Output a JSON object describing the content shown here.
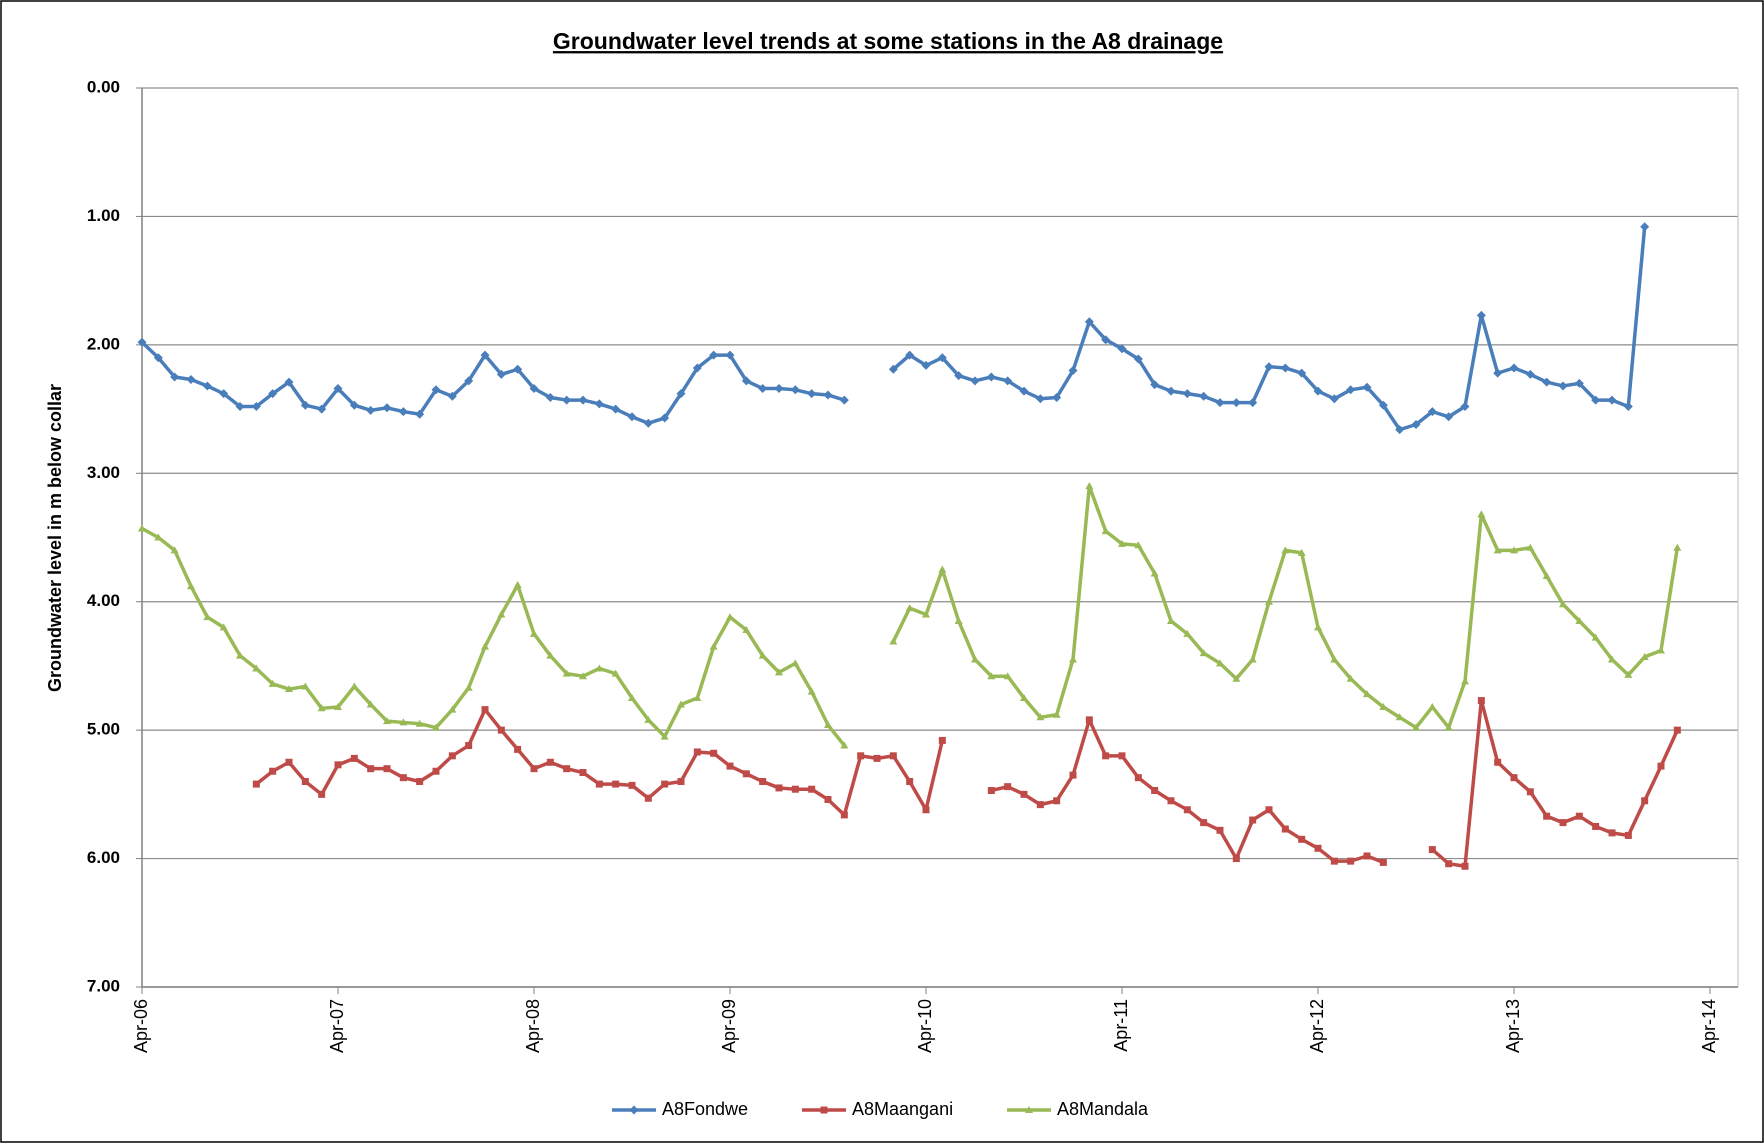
{
  "chart_data": {
    "type": "line",
    "title": "Groundwater level trends at some stations in the A8 drainage",
    "y_label": "Groundwater level in m below collar",
    "x": [
      "Apr-06",
      "May-06",
      "Jun-06",
      "Jul-06",
      "Aug-06",
      "Sep-06",
      "Oct-06",
      "Nov-06",
      "Dec-06",
      "Jan-07",
      "Feb-07",
      "Mar-07",
      "Apr-07",
      "May-07",
      "Jun-07",
      "Jul-07",
      "Aug-07",
      "Sep-07",
      "Oct-07",
      "Nov-07",
      "Dec-07",
      "Jan-08",
      "Feb-08",
      "Mar-08",
      "Apr-08",
      "May-08",
      "Jun-08",
      "Jul-08",
      "Aug-08",
      "Sep-08",
      "Oct-08",
      "Nov-08",
      "Dec-08",
      "Jan-09",
      "Feb-09",
      "Mar-09",
      "Apr-09",
      "May-09",
      "Jun-09",
      "Jul-09",
      "Aug-09",
      "Sep-09",
      "Oct-09",
      "Nov-09",
      "Dec-09",
      "Jan-10",
      "Feb-10",
      "Mar-10",
      "Apr-10",
      "May-10",
      "Jun-10",
      "Jul-10",
      "Aug-10",
      "Sep-10",
      "Oct-10",
      "Nov-10",
      "Dec-10",
      "Jan-11",
      "Feb-11",
      "Mar-11",
      "Apr-11",
      "May-11",
      "Jun-11",
      "Jul-11",
      "Aug-11",
      "Sep-11",
      "Oct-11",
      "Nov-11",
      "Dec-11",
      "Jan-12",
      "Feb-12",
      "Mar-12",
      "Apr-12",
      "May-12",
      "Jun-12",
      "Jul-12",
      "Aug-12",
      "Sep-12",
      "Oct-12",
      "Nov-12",
      "Dec-12",
      "Jan-13",
      "Feb-13",
      "Mar-13",
      "Apr-13",
      "May-13",
      "Jun-13",
      "Jul-13",
      "Aug-13",
      "Sep-13",
      "Oct-13",
      "Nov-13",
      "Dec-13",
      "Jan-14",
      "Feb-14"
    ],
    "series": [
      {
        "name": "A8Fondwe",
        "color": "#4a7ebb",
        "marker": "diamond",
        "values": [
          1.98,
          2.1,
          2.25,
          2.27,
          2.32,
          2.38,
          2.48,
          2.48,
          2.38,
          2.29,
          2.47,
          2.5,
          2.34,
          2.47,
          2.51,
          2.49,
          2.52,
          2.54,
          2.35,
          2.4,
          2.28,
          2.08,
          2.23,
          2.19,
          2.34,
          2.41,
          2.43,
          2.43,
          2.46,
          2.5,
          2.56,
          2.61,
          2.57,
          2.38,
          2.18,
          2.08,
          2.08,
          2.28,
          2.34,
          2.34,
          2.35,
          2.38,
          2.39,
          2.43,
          null,
          null,
          2.19,
          2.08,
          2.16,
          2.1,
          2.24,
          2.28,
          2.25,
          2.28,
          2.36,
          2.42,
          2.41,
          2.2,
          1.82,
          1.96,
          2.03,
          2.11,
          2.31,
          2.36,
          2.38,
          2.4,
          2.45,
          2.45,
          2.45,
          2.17,
          2.18,
          2.22,
          2.36,
          2.42,
          2.35,
          2.33,
          2.47,
          2.66,
          2.62,
          2.52,
          2.56,
          2.48,
          1.77,
          2.22,
          2.18,
          2.23,
          2.29,
          2.32,
          2.3,
          2.43,
          2.43,
          2.48,
          1.08,
          null,
          null
        ]
      },
      {
        "name": "A8Maangani",
        "color": "#be4b48",
        "marker": "square",
        "values": [
          null,
          null,
          null,
          null,
          null,
          null,
          null,
          5.42,
          5.32,
          5.25,
          5.4,
          5.5,
          5.27,
          5.22,
          5.3,
          5.3,
          5.37,
          5.4,
          5.32,
          5.2,
          5.12,
          4.84,
          5.0,
          5.15,
          5.3,
          5.25,
          5.3,
          5.33,
          5.42,
          5.42,
          5.43,
          5.53,
          5.42,
          5.4,
          5.17,
          5.18,
          5.28,
          5.34,
          5.4,
          5.45,
          5.46,
          5.46,
          5.54,
          5.66,
          5.2,
          5.22,
          5.2,
          5.4,
          5.62,
          5.08,
          null,
          null,
          5.47,
          5.44,
          5.5,
          5.58,
          5.55,
          5.35,
          4.92,
          5.2,
          5.2,
          5.37,
          5.47,
          5.55,
          5.62,
          5.72,
          5.78,
          6.0,
          5.7,
          5.62,
          5.77,
          5.85,
          5.92,
          6.02,
          6.02,
          5.98,
          6.03,
          null,
          null,
          5.93,
          6.04,
          6.06,
          4.77,
          5.25,
          5.37,
          5.48,
          5.67,
          5.72,
          5.67,
          5.75,
          5.8,
          5.82,
          5.55,
          5.28,
          5.0
        ]
      },
      {
        "name": "A8Mandala",
        "color": "#98b954",
        "marker": "triangle",
        "values": [
          3.43,
          3.5,
          3.6,
          3.88,
          4.12,
          4.2,
          4.42,
          4.52,
          4.64,
          4.68,
          4.66,
          4.83,
          4.82,
          4.66,
          4.8,
          4.93,
          4.94,
          4.95,
          4.98,
          4.84,
          4.67,
          4.35,
          4.1,
          3.87,
          4.25,
          4.42,
          4.56,
          4.58,
          4.52,
          4.56,
          4.75,
          4.92,
          5.05,
          4.8,
          4.75,
          4.35,
          4.12,
          4.22,
          4.42,
          4.55,
          4.48,
          4.7,
          4.96,
          5.12,
          null,
          null,
          4.31,
          4.05,
          4.1,
          3.75,
          4.15,
          4.45,
          4.58,
          4.58,
          4.75,
          4.9,
          4.88,
          4.45,
          3.1,
          3.45,
          3.55,
          3.56,
          3.78,
          4.15,
          4.25,
          4.4,
          4.48,
          4.6,
          4.45,
          4.0,
          3.6,
          3.62,
          4.2,
          4.45,
          4.6,
          4.72,
          4.82,
          4.9,
          4.98,
          4.82,
          4.98,
          4.62,
          3.32,
          3.6,
          3.6,
          3.58,
          3.8,
          4.02,
          4.15,
          4.28,
          4.45,
          4.57,
          4.43,
          4.38,
          3.58
        ]
      }
    ],
    "xlim": [
      "Apr-06",
      "Apr-14"
    ],
    "xticks": [
      "Apr-06",
      "Apr-07",
      "Apr-08",
      "Apr-09",
      "Apr-10",
      "Apr-11",
      "Apr-12",
      "Apr-13",
      "Apr-14"
    ],
    "ylim": [
      0,
      7
    ],
    "y_reversed": true,
    "yticks": [
      {
        "value": 0,
        "label": "0.00"
      },
      {
        "value": 1,
        "label": "1.00"
      },
      {
        "value": 2,
        "label": "2.00"
      },
      {
        "value": 3,
        "label": "3.00"
      },
      {
        "value": 4,
        "label": "4.00"
      },
      {
        "value": 5,
        "label": "5.00"
      },
      {
        "value": 6,
        "label": "6.00"
      },
      {
        "value": 7,
        "label": "7.00"
      }
    ],
    "grid": true,
    "legend": "bottom"
  }
}
